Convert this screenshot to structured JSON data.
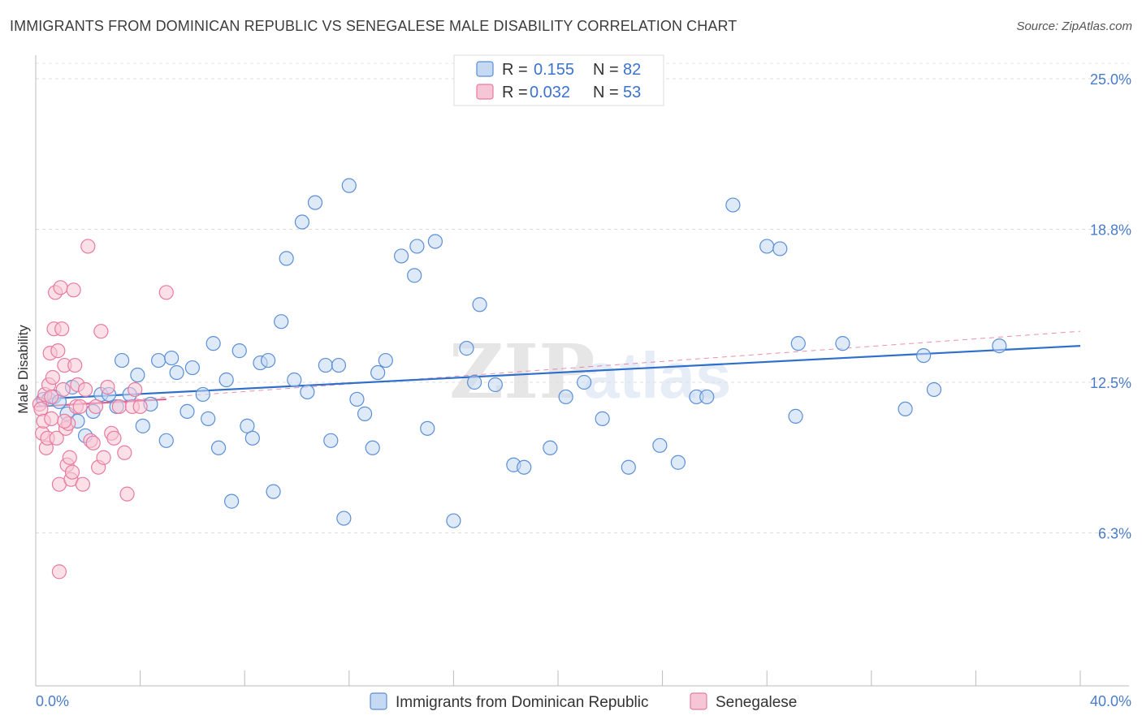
{
  "title": "IMMIGRANTS FROM DOMINICAN REPUBLIC VS SENEGALESE MALE DISABILITY CORRELATION CHART",
  "source": "Source: ZipAtlas.com",
  "colors": {
    "blue": "#5b8fd6",
    "blue_fill": "#c5d9f3",
    "blue_line": "#2f6fcc",
    "pink": "#e87aa0",
    "pink_fill": "#f7c6d6",
    "pink_line": "#e0608e",
    "tick_text": "#4a7cc9"
  },
  "legend": {
    "rows": [
      {
        "r_label": "R = ",
        "r_value": "0.155",
        "n_label": "N = ",
        "n_value": "82"
      },
      {
        "r_label": "R = ",
        "r_value": "0.032",
        "n_label": "N = ",
        "n_value": "53"
      }
    ]
  },
  "chart_data": {
    "type": "scatter",
    "xlabel": "",
    "ylabel": "Male Disability",
    "xlim": [
      0,
      40
    ],
    "ylim": [
      0,
      25
    ],
    "x_tick_labels": [
      "0.0%",
      "40.0%"
    ],
    "y_ticks": [
      25.0,
      18.8,
      12.5,
      6.3
    ],
    "y_tick_labels": [
      "25.0%",
      "18.8%",
      "12.5%",
      "6.3%"
    ],
    "grid": "horizontal dashed",
    "legend_position": "top-center",
    "series": [
      {
        "name": "Immigrants from Dominican Republic",
        "color": "#5b8fd6",
        "trend": {
          "x": [
            0,
            40
          ],
          "y": [
            11.8,
            14.0
          ]
        },
        "points": [
          [
            0.3,
            11.8
          ],
          [
            0.5,
            11.8
          ],
          [
            0.7,
            11.9
          ],
          [
            0.9,
            11.7
          ],
          [
            1.2,
            11.2
          ],
          [
            1.4,
            12.3
          ],
          [
            1.6,
            10.9
          ],
          [
            1.9,
            10.3
          ],
          [
            2.2,
            11.3
          ],
          [
            2.5,
            12.0
          ],
          [
            2.8,
            12.0
          ],
          [
            3.1,
            11.5
          ],
          [
            3.3,
            13.4
          ],
          [
            3.6,
            12.0
          ],
          [
            3.9,
            12.8
          ],
          [
            4.1,
            10.7
          ],
          [
            4.4,
            11.6
          ],
          [
            4.7,
            13.4
          ],
          [
            5.0,
            10.1
          ],
          [
            5.2,
            13.5
          ],
          [
            5.4,
            12.9
          ],
          [
            5.8,
            11.3
          ],
          [
            6.0,
            13.1
          ],
          [
            6.4,
            12.0
          ],
          [
            6.6,
            11.0
          ],
          [
            6.8,
            14.1
          ],
          [
            7.0,
            9.8
          ],
          [
            7.3,
            12.6
          ],
          [
            7.5,
            7.6
          ],
          [
            7.8,
            13.8
          ],
          [
            8.1,
            10.7
          ],
          [
            8.3,
            10.2
          ],
          [
            8.6,
            13.3
          ],
          [
            8.9,
            13.4
          ],
          [
            9.1,
            8.0
          ],
          [
            9.4,
            15.0
          ],
          [
            9.6,
            17.6
          ],
          [
            9.9,
            12.6
          ],
          [
            10.2,
            19.1
          ],
          [
            10.4,
            12.1
          ],
          [
            10.7,
            19.9
          ],
          [
            11.1,
            13.2
          ],
          [
            11.3,
            10.1
          ],
          [
            11.6,
            13.2
          ],
          [
            11.8,
            6.9
          ],
          [
            12.0,
            20.6
          ],
          [
            12.3,
            11.8
          ],
          [
            12.6,
            11.2
          ],
          [
            12.9,
            9.8
          ],
          [
            13.1,
            12.9
          ],
          [
            13.4,
            13.4
          ],
          [
            14.0,
            17.7
          ],
          [
            14.5,
            16.9
          ],
          [
            14.6,
            18.1
          ],
          [
            15.0,
            10.6
          ],
          [
            15.3,
            18.3
          ],
          [
            16.0,
            6.8
          ],
          [
            16.5,
            13.9
          ],
          [
            16.8,
            12.5
          ],
          [
            17.0,
            15.7
          ],
          [
            17.6,
            12.4
          ],
          [
            18.3,
            9.1
          ],
          [
            18.7,
            9.0
          ],
          [
            19.7,
            9.8
          ],
          [
            20.3,
            11.9
          ],
          [
            21.0,
            12.5
          ],
          [
            21.7,
            11.0
          ],
          [
            22.7,
            9.0
          ],
          [
            23.9,
            9.9
          ],
          [
            24.6,
            9.2
          ],
          [
            25.3,
            11.9
          ],
          [
            25.7,
            11.9
          ],
          [
            26.7,
            19.8
          ],
          [
            28.0,
            18.1
          ],
          [
            28.5,
            18.0
          ],
          [
            29.1,
            11.1
          ],
          [
            29.2,
            14.1
          ],
          [
            30.9,
            14.1
          ],
          [
            33.3,
            11.4
          ],
          [
            34.0,
            13.6
          ],
          [
            34.4,
            12.2
          ],
          [
            36.9,
            14.0
          ]
        ]
      },
      {
        "name": "Senegalese",
        "color": "#e87aa0",
        "trend": {
          "x": [
            0,
            5
          ],
          "y": [
            11.5,
            11.8
          ]
        },
        "trend_extended": {
          "x": [
            0,
            40
          ],
          "y": [
            11.5,
            14.6
          ]
        },
        "points": [
          [
            0.15,
            11.6
          ],
          [
            0.2,
            11.4
          ],
          [
            0.25,
            10.4
          ],
          [
            0.3,
            10.9
          ],
          [
            0.35,
            12.0
          ],
          [
            0.4,
            9.8
          ],
          [
            0.45,
            10.2
          ],
          [
            0.5,
            12.4
          ],
          [
            0.55,
            13.7
          ],
          [
            0.6,
            11.0
          ],
          [
            0.65,
            12.7
          ],
          [
            0.7,
            14.7
          ],
          [
            0.75,
            16.2
          ],
          [
            0.8,
            10.2
          ],
          [
            0.85,
            13.8
          ],
          [
            0.9,
            8.3
          ],
          [
            0.95,
            16.4
          ],
          [
            1.0,
            14.7
          ],
          [
            1.05,
            12.2
          ],
          [
            1.1,
            13.2
          ],
          [
            1.15,
            10.6
          ],
          [
            1.2,
            9.1
          ],
          [
            1.25,
            10.8
          ],
          [
            1.3,
            9.4
          ],
          [
            1.35,
            8.5
          ],
          [
            1.4,
            8.8
          ],
          [
            1.45,
            16.3
          ],
          [
            1.5,
            13.2
          ],
          [
            1.55,
            11.5
          ],
          [
            1.6,
            12.4
          ],
          [
            1.7,
            11.5
          ],
          [
            1.8,
            8.3
          ],
          [
            1.9,
            12.2
          ],
          [
            2.0,
            18.1
          ],
          [
            2.1,
            10.1
          ],
          [
            2.2,
            10.0
          ],
          [
            2.3,
            11.5
          ],
          [
            2.4,
            9.0
          ],
          [
            2.5,
            14.6
          ],
          [
            2.6,
            9.4
          ],
          [
            2.75,
            12.3
          ],
          [
            2.9,
            10.4
          ],
          [
            3.0,
            10.2
          ],
          [
            3.2,
            11.5
          ],
          [
            3.4,
            9.6
          ],
          [
            3.5,
            7.9
          ],
          [
            3.7,
            11.5
          ],
          [
            3.8,
            12.2
          ],
          [
            4.0,
            11.5
          ],
          [
            5.0,
            16.2
          ],
          [
            0.6,
            11.9
          ],
          [
            0.9,
            4.7
          ],
          [
            1.1,
            10.9
          ]
        ]
      }
    ]
  },
  "bottom_legend": [
    {
      "label": "Immigrants from Dominican Republic"
    },
    {
      "label": "Senegalese"
    }
  ]
}
